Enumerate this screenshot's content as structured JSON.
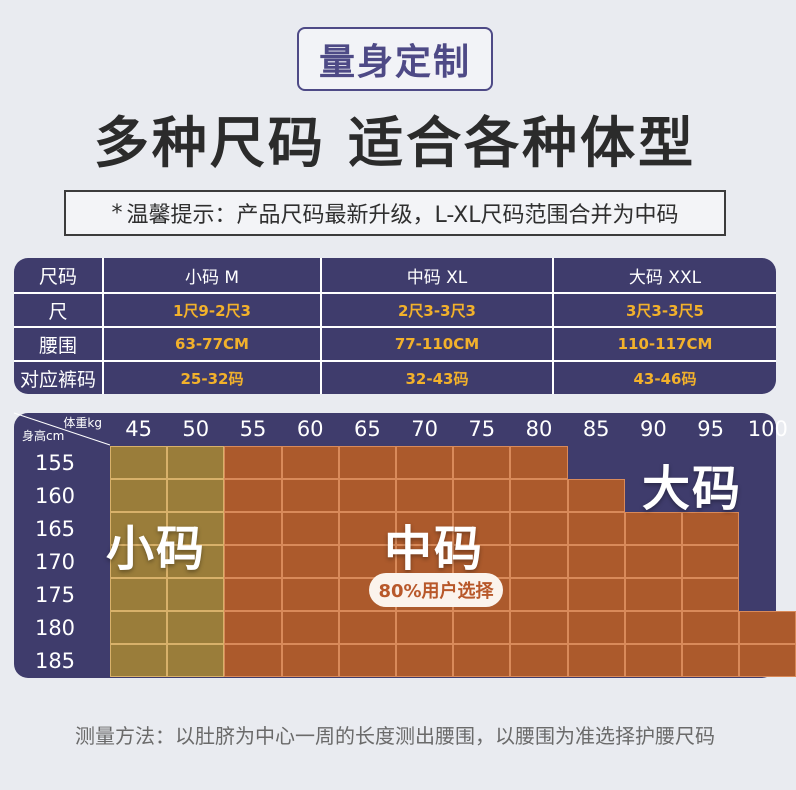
{
  "badge": "量身定制",
  "headline": "多种尺码 适合各种体型",
  "notice": {
    "icon": "asterisk-icon",
    "icon_glyph": "*",
    "text": "温馨提示：产品尺码最新升级，L-XL尺码范围合并为中码"
  },
  "size_table": {
    "header": [
      "尺码",
      "小码 M",
      "中码 XL",
      "大码 XXL"
    ],
    "rows": [
      [
        "尺",
        "1尺9-2尺3",
        "2尺3-3尺3",
        "3尺3-3尺5"
      ],
      [
        "腰围",
        "63-77CM",
        "77-110CM",
        "110-117CM"
      ],
      [
        "对应裤码",
        "25-32码",
        "32-43码",
        "43-46码"
      ]
    ]
  },
  "grid": {
    "weight_label": "体重kg",
    "height_label": "身高cm",
    "weights": [
      "45",
      "50",
      "55",
      "60",
      "65",
      "70",
      "75",
      "80",
      "85",
      "90",
      "95",
      "100"
    ],
    "heights": [
      "155",
      "160",
      "165",
      "170",
      "175",
      "180",
      "185"
    ],
    "size_map": [
      [
        "S",
        "S",
        "M",
        "M",
        "M",
        "M",
        "M",
        "M",
        "L",
        "L",
        "L",
        "L"
      ],
      [
        "S",
        "S",
        "M",
        "M",
        "M",
        "M",
        "M",
        "M",
        "M",
        "L",
        "L",
        "L"
      ],
      [
        "S",
        "S",
        "M",
        "M",
        "M",
        "M",
        "M",
        "M",
        "M",
        "M",
        "M",
        "L"
      ],
      [
        "S",
        "S",
        "M",
        "M",
        "M",
        "M",
        "M",
        "M",
        "M",
        "M",
        "M",
        "L"
      ],
      [
        "S",
        "S",
        "M",
        "M",
        "M",
        "M",
        "M",
        "M",
        "M",
        "M",
        "M",
        "L"
      ],
      [
        "S",
        "S",
        "M",
        "M",
        "M",
        "M",
        "M",
        "M",
        "M",
        "M",
        "M",
        "M"
      ],
      [
        "S",
        "S",
        "M",
        "M",
        "M",
        "M",
        "M",
        "M",
        "M",
        "M",
        "M",
        "M"
      ]
    ],
    "labels": {
      "small": "小码",
      "medium": "中码",
      "large": "大码",
      "badge": "80%用户选择"
    },
    "colors": {
      "small": "#9a7d3a",
      "medium": "#ac5a2c",
      "large": "#3f3c6c"
    }
  },
  "footer": "测量方法：以肚脐为中心一周的长度测出腰围，以腰围为准选择护腰尺码"
}
